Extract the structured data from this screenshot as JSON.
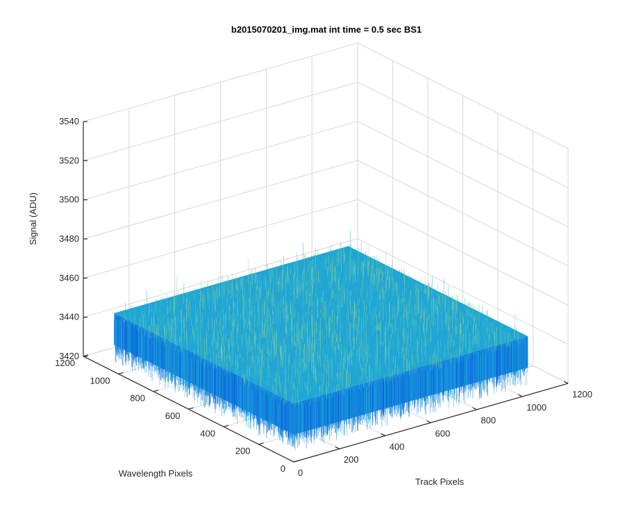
{
  "chart_data": {
    "type": "surface",
    "title": "b2015070201_img.mat int time = 0.5 sec   BS1",
    "xlabel": "Track Pixels",
    "ylabel": "Wavelength Pixels",
    "zlabel": "Signal (ADU)",
    "xlim": [
      0,
      1200
    ],
    "ylim": [
      0,
      1200
    ],
    "zlim": [
      3420,
      3540
    ],
    "xticks": [
      "0",
      "200",
      "400",
      "600",
      "800",
      "1000",
      "1200"
    ],
    "yticks": [
      "0",
      "200",
      "400",
      "600",
      "800",
      "1000",
      "1200"
    ],
    "zticks": [
      "3420",
      "3440",
      "3460",
      "3480",
      "3500",
      "3520",
      "3540"
    ],
    "grid": true,
    "surface": {
      "x_extent": [
        0,
        1024
      ],
      "y_extent": [
        0,
        1024
      ],
      "mean_signal": 3442,
      "signal_spread": [
        3425,
        3480
      ]
    },
    "colormap": [
      "#0a5fd8",
      "#1488e0",
      "#20a6d4",
      "#3cbcc6",
      "#6ccab0",
      "#9fd58f"
    ]
  }
}
